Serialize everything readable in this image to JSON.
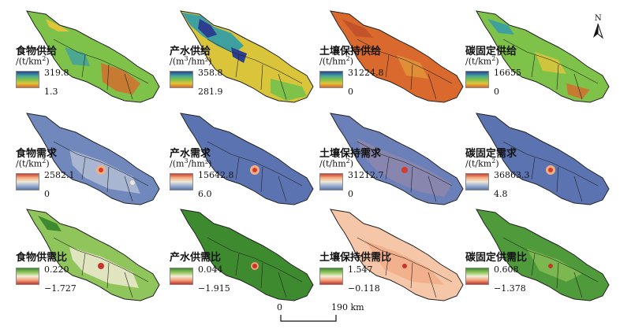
{
  "panels": [
    {
      "title": "食物供给",
      "unit_pre": "/(t/km",
      "unit_sup": "2",
      "unit_post": ")",
      "max": "319.8",
      "min": "1.3",
      "scheme": "supply"
    },
    {
      "title": "产水供给",
      "unit_pre": "/(m",
      "unit_sup": "3",
      "unit_post": "/hm²)",
      "max": "358.8",
      "min": "281.9",
      "scheme": "supply"
    },
    {
      "title": "土壤保持供给",
      "unit_pre": "/(t/hm",
      "unit_sup": "2",
      "unit_post": ")",
      "max": "31224.8",
      "min": "0",
      "scheme": "supply"
    },
    {
      "title": "碳固定供给",
      "unit_pre": "/(t/km",
      "unit_sup": "2",
      "unit_post": ")",
      "max": "16655",
      "min": "0",
      "scheme": "supply"
    },
    {
      "title": "食物需求",
      "unit_pre": "/(t/km",
      "unit_sup": "2",
      "unit_post": ")",
      "max": "2582.1",
      "min": "0",
      "scheme": "demand"
    },
    {
      "title": "产水需求",
      "unit_pre": "/(m",
      "unit_sup": "3",
      "unit_post": "/hm²)",
      "max": "15642.8",
      "min": "6.0",
      "scheme": "demand"
    },
    {
      "title": "土壤保持需求",
      "unit_pre": "/(t/hm",
      "unit_sup": "2",
      "unit_post": ")",
      "max": "31212.7",
      "min": "0",
      "scheme": "demand"
    },
    {
      "title": "碳固定需求",
      "unit_pre": "/(t/km",
      "unit_sup": "2",
      "unit_post": ")",
      "max": "36863.3",
      "min": "4.8",
      "scheme": "demand"
    },
    {
      "title": "食物供需比",
      "unit_pre": "",
      "unit_sup": "",
      "unit_post": "",
      "max": "0.220",
      "min": "−1.727",
      "scheme": "ratio"
    },
    {
      "title": "产水供需比",
      "unit_pre": "",
      "unit_sup": "",
      "unit_post": "",
      "max": "0.044",
      "min": "−1.915",
      "scheme": "ratio"
    },
    {
      "title": "土壤保持供需比",
      "unit_pre": "",
      "unit_sup": "",
      "unit_post": "",
      "max": "1.547",
      "min": "−0.118",
      "scheme": "ratio"
    },
    {
      "title": "碳固定供需比",
      "unit_pre": "",
      "unit_sup": "",
      "unit_post": "",
      "max": "0.608",
      "min": "−1.378",
      "scheme": "ratio"
    }
  ],
  "north_label": "N",
  "scale": {
    "zero": "0",
    "end": "190 km"
  },
  "colors": {
    "supply": [
      "#2c3e8f",
      "#3fa0a0",
      "#7fc24a",
      "#e2c43a",
      "#d9692c"
    ],
    "demand": [
      "#d63c2e",
      "#f2b184",
      "#eee8d8",
      "#9bb0d0",
      "#5b73b0"
    ],
    "ratio": [
      "#3e8a2f",
      "#8fc55a",
      "#f4ecd8",
      "#f1a07a",
      "#c8342a"
    ]
  }
}
